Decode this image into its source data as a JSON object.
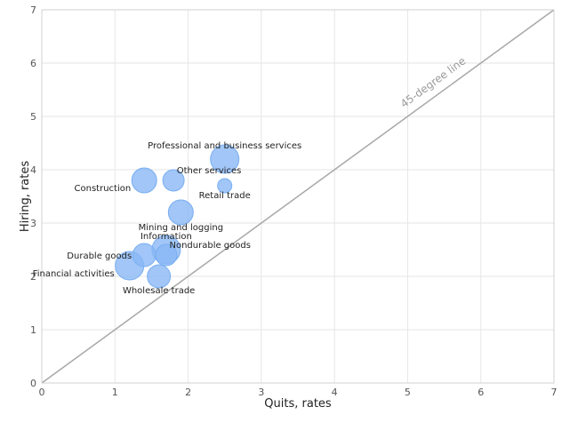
{
  "chart_data": {
    "type": "scatter",
    "title": "",
    "xlabel": "Quits, rates",
    "ylabel": "Hiring, rates",
    "xlim": [
      0,
      7
    ],
    "ylim": [
      0,
      7
    ],
    "xticks": [
      "0",
      "1",
      "2",
      "3",
      "4",
      "5",
      "6",
      "7"
    ],
    "yticks": [
      "0",
      "1",
      "2",
      "3",
      "4",
      "5",
      "6",
      "7"
    ],
    "grid": true,
    "reference_line": {
      "label": "45-degree line",
      "slope": 1,
      "intercept": 0
    },
    "bubble_color": "#8ab8f5",
    "points": [
      {
        "label": "Professional and business services",
        "x": 2.5,
        "y": 4.2,
        "size": 16,
        "label_pos": "above"
      },
      {
        "label": "Other services",
        "x": 1.8,
        "y": 3.8,
        "size": 12,
        "label_pos": "right"
      },
      {
        "label": "Construction",
        "x": 1.4,
        "y": 3.8,
        "size": 14,
        "label_pos": "left"
      },
      {
        "label": "Retail trade",
        "x": 2.5,
        "y": 3.7,
        "size": 8,
        "label_pos": "below"
      },
      {
        "label": "Mining and logging",
        "x": 1.9,
        "y": 3.2,
        "size": 14,
        "label_pos": "below"
      },
      {
        "label": "Information",
        "x": 1.7,
        "y": 2.5,
        "size": 16,
        "label_pos": "above"
      },
      {
        "label": "Durable goods",
        "x": 1.4,
        "y": 2.4,
        "size": 13,
        "label_pos": "left"
      },
      {
        "label": "Nondurable goods",
        "x": 1.7,
        "y": 2.4,
        "size": 12,
        "label_pos": "right"
      },
      {
        "label": "Financial activities",
        "x": 1.2,
        "y": 2.2,
        "size": 16,
        "label_pos": "left"
      },
      {
        "label": "Wholesale trade",
        "x": 1.6,
        "y": 2.0,
        "size": 13,
        "label_pos": "below"
      }
    ]
  }
}
